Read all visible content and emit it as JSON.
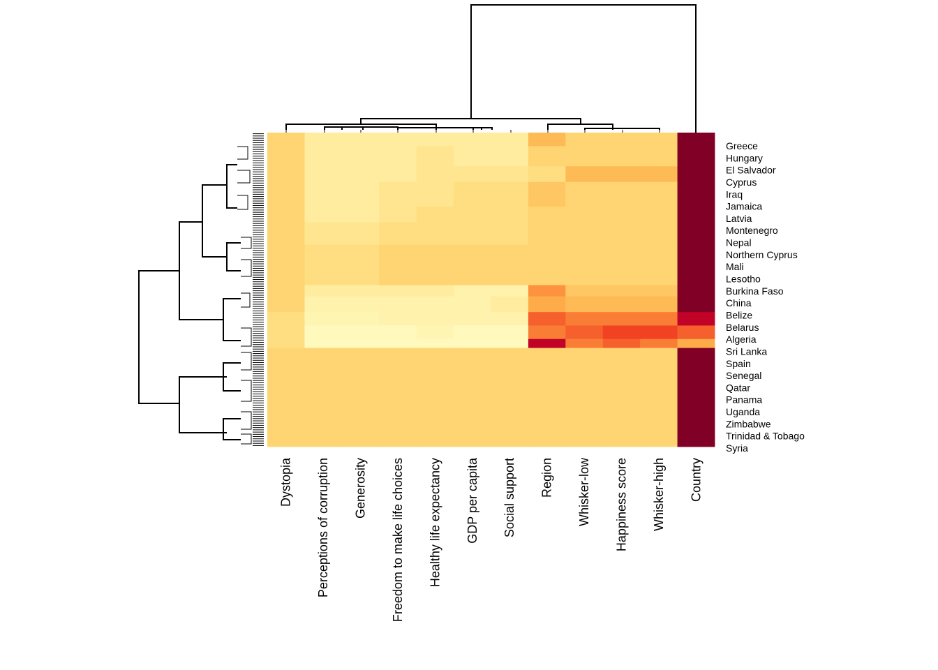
{
  "chart_data": {
    "type": "heatmap",
    "title": "",
    "columns": [
      "Dystopia",
      "Perceptions of corruption",
      "Generosity",
      "Freedom to make life choices",
      "Healthy life expectancy",
      "GDP per capita",
      "Social support",
      "Region",
      "Whisker-low",
      "Happiness score",
      "Whisker-high",
      "Country"
    ],
    "row_labels": [
      "Greece",
      "Hungary",
      "El Salvador",
      "Cyprus",
      "Iraq",
      "Jamaica",
      "Latvia",
      "Montenegro",
      "Nepal",
      "Northern Cyprus",
      "Mali",
      "Lesotho",
      "Burkina Faso",
      "China",
      "Belize",
      "Belarus",
      "Algeria",
      "Sri Lanka",
      "Spain",
      "Senegal",
      "Qatar",
      "Panama",
      "Uganda",
      "Zimbabwe",
      "Trinidad & Tobago",
      "Syria"
    ],
    "row_count": 140,
    "value_scale": "0 = light yellow (#ffffcc), 1 = dark red (#800026)",
    "blocks": [
      {
        "from": 0,
        "to": 6,
        "values": [
          0.3,
          0.15,
          0.15,
          0.15,
          0.15,
          0.15,
          0.15,
          0.4,
          0.3,
          0.3,
          0.3,
          1.0
        ]
      },
      {
        "from": 6,
        "to": 15,
        "values": [
          0.3,
          0.15,
          0.15,
          0.15,
          0.2,
          0.15,
          0.15,
          0.3,
          0.3,
          0.3,
          0.3,
          1.0
        ]
      },
      {
        "from": 15,
        "to": 22,
        "values": [
          0.3,
          0.15,
          0.15,
          0.15,
          0.2,
          0.2,
          0.2,
          0.25,
          0.4,
          0.4,
          0.4,
          1.0
        ]
      },
      {
        "from": 22,
        "to": 33,
        "values": [
          0.3,
          0.15,
          0.15,
          0.2,
          0.2,
          0.25,
          0.25,
          0.35,
          0.3,
          0.3,
          0.3,
          1.0
        ]
      },
      {
        "from": 33,
        "to": 40,
        "values": [
          0.3,
          0.15,
          0.15,
          0.2,
          0.25,
          0.25,
          0.25,
          0.3,
          0.3,
          0.3,
          0.3,
          1.0
        ]
      },
      {
        "from": 40,
        "to": 50,
        "values": [
          0.3,
          0.2,
          0.2,
          0.25,
          0.25,
          0.25,
          0.25,
          0.3,
          0.3,
          0.3,
          0.3,
          1.0
        ]
      },
      {
        "from": 50,
        "to": 68,
        "values": [
          0.3,
          0.25,
          0.25,
          0.3,
          0.3,
          0.3,
          0.3,
          0.3,
          0.3,
          0.3,
          0.3,
          1.0
        ]
      },
      {
        "from": 68,
        "to": 73,
        "values": [
          0.3,
          0.15,
          0.15,
          0.15,
          0.15,
          0.1,
          0.1,
          0.55,
          0.35,
          0.35,
          0.35,
          1.0
        ]
      },
      {
        "from": 73,
        "to": 80,
        "values": [
          0.3,
          0.1,
          0.1,
          0.1,
          0.1,
          0.1,
          0.15,
          0.45,
          0.4,
          0.4,
          0.4,
          1.0
        ]
      },
      {
        "from": 80,
        "to": 86,
        "values": [
          0.25,
          0.08,
          0.08,
          0.1,
          0.1,
          0.1,
          0.1,
          0.65,
          0.6,
          0.6,
          0.6,
          0.85
        ]
      },
      {
        "from": 86,
        "to": 92,
        "values": [
          0.25,
          0.05,
          0.05,
          0.05,
          0.08,
          0.05,
          0.05,
          0.6,
          0.65,
          0.7,
          0.7,
          0.65
        ]
      },
      {
        "from": 92,
        "to": 96,
        "values": [
          0.25,
          0.05,
          0.05,
          0.05,
          0.05,
          0.05,
          0.05,
          0.85,
          0.6,
          0.65,
          0.6,
          0.45
        ]
      },
      {
        "from": 96,
        "to": 140,
        "values": [
          0.3,
          0.3,
          0.3,
          0.3,
          0.3,
          0.3,
          0.3,
          0.3,
          0.3,
          0.3,
          0.3,
          1.0
        ]
      }
    ]
  }
}
